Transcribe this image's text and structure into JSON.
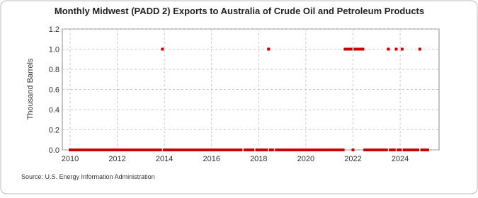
{
  "chart_data": {
    "type": "scatter",
    "title": "Monthly Midwest (PADD 2) Exports to Australia of Crude Oil and Petroleum Products",
    "y_label": "Thousand Barrels",
    "source": "Source: U.S. Energy Information Administration",
    "xlim": [
      2009.67,
      2025.65
    ],
    "xticks": [
      2010,
      2012,
      2014,
      2016,
      2018,
      2020,
      2022,
      2024
    ],
    "ylim": [
      0,
      1.2
    ],
    "yticks": [
      {
        "value": 0,
        "label": "0.0"
      },
      {
        "value": 0.2,
        "label": "0.2"
      },
      {
        "value": 0.4,
        "label": "0.4"
      },
      {
        "value": 0.6,
        "label": "0.6"
      },
      {
        "value": 0.8,
        "label": "0.8"
      },
      {
        "value": 1,
        "label": "1.0"
      },
      {
        "value": 1.2,
        "label": "1.2"
      }
    ],
    "grid": true,
    "x": [
      2010.0,
      2010.083,
      2010.167,
      2010.25,
      2010.333,
      2010.417,
      2010.5,
      2010.583,
      2010.667,
      2010.75,
      2010.833,
      2010.917,
      2011.0,
      2011.083,
      2011.167,
      2011.25,
      2011.333,
      2011.417,
      2011.5,
      2011.583,
      2011.667,
      2011.75,
      2011.833,
      2011.917,
      2012.0,
      2012.083,
      2012.167,
      2012.25,
      2012.333,
      2012.417,
      2012.5,
      2012.583,
      2012.667,
      2012.75,
      2012.833,
      2012.917,
      2013.0,
      2013.083,
      2013.167,
      2013.25,
      2013.333,
      2013.417,
      2013.5,
      2013.583,
      2013.667,
      2013.75,
      2013.833,
      2013.917,
      2014.0,
      2014.083,
      2014.167,
      2014.25,
      2014.333,
      2014.417,
      2014.5,
      2014.583,
      2014.667,
      2014.75,
      2014.833,
      2014.917,
      2015.0,
      2015.083,
      2015.167,
      2015.25,
      2015.333,
      2015.417,
      2015.5,
      2015.583,
      2015.667,
      2015.75,
      2015.833,
      2015.917,
      2016.0,
      2016.083,
      2016.167,
      2016.25,
      2016.333,
      2016.417,
      2016.5,
      2016.583,
      2016.667,
      2016.75,
      2016.833,
      2016.917,
      2017.0,
      2017.083,
      2017.167,
      2017.25,
      2017.333,
      2017.417,
      2017.5,
      2017.583,
      2017.667,
      2017.75,
      2017.833,
      2017.917,
      2018.0,
      2018.083,
      2018.167,
      2018.25,
      2018.333,
      2018.417,
      2018.5,
      2018.583,
      2018.667,
      2018.75,
      2018.833,
      2018.917,
      2019.0,
      2019.083,
      2019.167,
      2019.25,
      2019.333,
      2019.417,
      2019.5,
      2019.583,
      2019.667,
      2019.75,
      2019.833,
      2019.917,
      2020.0,
      2020.083,
      2020.167,
      2020.25,
      2020.333,
      2020.417,
      2020.5,
      2020.583,
      2020.667,
      2020.75,
      2020.833,
      2020.917,
      2021.0,
      2021.083,
      2021.167,
      2021.25,
      2021.333,
      2021.417,
      2021.5,
      2021.583,
      2021.667,
      2021.75,
      2021.833,
      2021.917,
      2022.0,
      2022.083,
      2022.167,
      2022.25,
      2022.333,
      2022.417,
      2022.5,
      2022.583,
      2022.667,
      2022.75,
      2022.833,
      2022.917,
      2023.0,
      2023.083,
      2023.167,
      2023.25,
      2023.333,
      2023.417,
      2023.5,
      2023.583,
      2023.667,
      2023.75,
      2023.833,
      2023.917,
      2024.0,
      2024.083,
      2024.167,
      2024.25,
      2024.333,
      2024.417,
      2024.5,
      2024.583,
      2024.667,
      2024.75,
      2024.833,
      2024.917,
      2025.0,
      2025.083,
      2025.167
    ],
    "series": [
      {
        "color": "#cc0000",
        "values": [
          0,
          0,
          0,
          0,
          0,
          0,
          0,
          0,
          0,
          0,
          0,
          0,
          0,
          0,
          0,
          0,
          0,
          0,
          0,
          0,
          0,
          0,
          0,
          0,
          0,
          0,
          0,
          0,
          0,
          0,
          0,
          0,
          0,
          0,
          0,
          0,
          0,
          0,
          0,
          0,
          0,
          0,
          0,
          0,
          0,
          0,
          0,
          1,
          0,
          0,
          0,
          0,
          0,
          0,
          0,
          0,
          0,
          0,
          0,
          0,
          0,
          0,
          0,
          0,
          0,
          0,
          0,
          0,
          0,
          0,
          0,
          0,
          0,
          0,
          0,
          0,
          0,
          0,
          0,
          0,
          0,
          0,
          0,
          0,
          0,
          0,
          0,
          0,
          null,
          0,
          0,
          0,
          0,
          0,
          null,
          0,
          0,
          0,
          0,
          0,
          0,
          1,
          0,
          0,
          null,
          0,
          0,
          0,
          0,
          0,
          0,
          0,
          0,
          0,
          0,
          0,
          0,
          0,
          0,
          0,
          0,
          0,
          0,
          0,
          0,
          0,
          0,
          0,
          0,
          0,
          0,
          0,
          0,
          0,
          0,
          0,
          0,
          0,
          0,
          0,
          1,
          1,
          1,
          1,
          0,
          1,
          1,
          1,
          1,
          1,
          0,
          0,
          0,
          0,
          0,
          0,
          0,
          0,
          0,
          0,
          0,
          0,
          1,
          0,
          0,
          0,
          1,
          0,
          0,
          1,
          0,
          0,
          0,
          0,
          0,
          0,
          0,
          0,
          1,
          0,
          0,
          0,
          0
        ]
      }
    ]
  }
}
